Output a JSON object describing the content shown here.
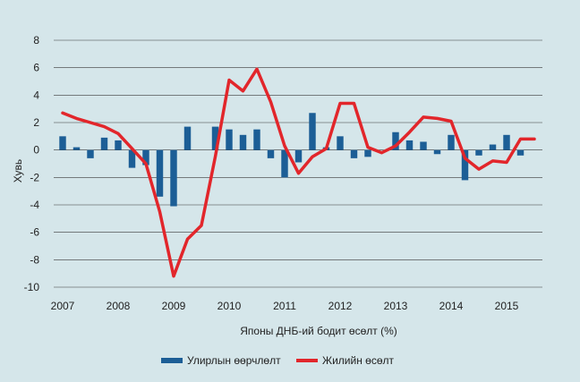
{
  "chart_data": {
    "type": "bar+line",
    "xlabel": "Японы ДНБ-ий бодит өсөлт  (%)",
    "ylabel": "Хувь",
    "ylim": [
      -10,
      8
    ],
    "yticks": [
      8,
      6,
      4,
      2,
      0,
      -2,
      -4,
      -6,
      -8,
      -10
    ],
    "grid": "horizontal",
    "legend_position": "bottom",
    "year_labels": [
      "2007",
      "2008",
      "2009",
      "2010",
      "2011",
      "2012",
      "2013",
      "2014",
      "2015"
    ],
    "quarters": [
      "2007Q1",
      "2007Q2",
      "2007Q3",
      "2007Q4",
      "2008Q1",
      "2008Q2",
      "2008Q3",
      "2008Q4",
      "2009Q1",
      "2009Q2",
      "2009Q3",
      "2009Q4",
      "2010Q1",
      "2010Q2",
      "2010Q3",
      "2010Q4",
      "2011Q1",
      "2011Q2",
      "2011Q3",
      "2011Q4",
      "2012Q1",
      "2012Q2",
      "2012Q3",
      "2012Q4",
      "2013Q1",
      "2013Q2",
      "2013Q3",
      "2013Q4",
      "2014Q1",
      "2014Q2",
      "2014Q3",
      "2014Q4",
      "2015Q1",
      "2015Q2",
      "2015Q3"
    ],
    "series": [
      {
        "name": "Улирлын өөрчлөлт",
        "type": "bar",
        "color": "#1c5e96",
        "values": [
          1.0,
          0.2,
          -0.6,
          0.9,
          0.7,
          -1.3,
          -1.1,
          -3.4,
          -4.1,
          1.7,
          0.0,
          1.7,
          1.5,
          1.1,
          1.5,
          -0.6,
          -2.0,
          -0.9,
          2.7,
          0.2,
          1.0,
          -0.6,
          -0.5,
          0.0,
          1.3,
          0.7,
          0.6,
          -0.3,
          1.1,
          -2.2,
          -0.4,
          0.4,
          1.1,
          -0.4,
          0.0
        ]
      },
      {
        "name": "Жилийн өсөлт",
        "type": "line",
        "color": "#e2262b",
        "values": [
          2.7,
          2.3,
          2.0,
          1.7,
          1.2,
          0.1,
          -1.0,
          -4.5,
          -9.2,
          -6.5,
          -5.5,
          -0.5,
          5.1,
          4.3,
          5.9,
          3.5,
          0.3,
          -1.7,
          -0.5,
          0.1,
          3.4,
          3.4,
          0.2,
          -0.2,
          0.3,
          1.3,
          2.4,
          2.3,
          2.1,
          -0.6,
          -1.4,
          -0.8,
          -0.9,
          0.8,
          0.8
        ]
      }
    ]
  },
  "legend": [
    {
      "label": "Улирлын өөрчлөлт",
      "color": "#1c5e96",
      "kind": "bar"
    },
    {
      "label": "Жилийн өсөлт",
      "color": "#e2262b",
      "kind": "line"
    }
  ]
}
